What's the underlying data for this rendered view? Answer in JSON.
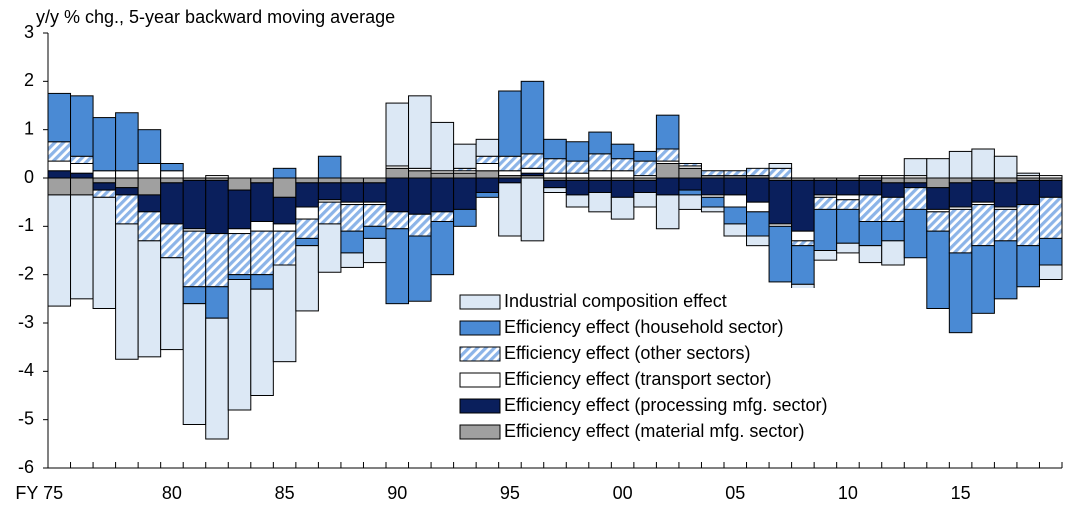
{
  "chart_data": {
    "type": "bar",
    "stacked": true,
    "title": "y/y % chg., 5-year backward moving average",
    "categories": [
      "FY 75",
      null,
      null,
      null,
      null,
      "80",
      null,
      null,
      null,
      null,
      "85",
      null,
      null,
      null,
      null,
      "90",
      null,
      null,
      null,
      null,
      "95",
      null,
      null,
      null,
      null,
      "00",
      null,
      null,
      null,
      null,
      "05",
      null,
      null,
      null,
      null,
      "10",
      null,
      null,
      null,
      null,
      "15",
      null,
      null,
      null,
      null
    ],
    "ylim": [
      -6,
      3
    ],
    "yticks": [
      3,
      2,
      1,
      0,
      -1,
      -2,
      -3,
      -4,
      -5,
      -6
    ],
    "series": [
      {
        "name": "Industrial composition effect",
        "color": "#dce8f5",
        "values": [
          -2.3,
          -2.15,
          -2.3,
          -2.8,
          -2.4,
          -1.9,
          -2.5,
          -2.5,
          -2.7,
          -2.2,
          -2.0,
          -1.35,
          -1.0,
          -0.3,
          -0.5,
          1.3,
          1.5,
          1.0,
          0.5,
          0.35,
          -1.1,
          -1.3,
          -0.1,
          -0.25,
          -0.4,
          -0.45,
          -0.3,
          -0.7,
          -0.3,
          -0.1,
          -0.25,
          -0.2,
          0.1,
          -0.35,
          -0.2,
          -0.2,
          -0.35,
          -0.5,
          0.35,
          0.4,
          0.55,
          0.6,
          0.45,
          0.05,
          -0.3
        ]
      },
      {
        "name": "Efficiency effect (household sector)",
        "color": "#4a8ad4",
        "values": [
          1.0,
          1.25,
          1.1,
          1.2,
          0.7,
          0.15,
          -0.35,
          -0.65,
          -0.1,
          -0.3,
          0.2,
          -0.15,
          0.45,
          -0.45,
          -0.25,
          -1.55,
          -1.35,
          -1.1,
          -0.35,
          -0.1,
          1.35,
          1.5,
          0.4,
          0.4,
          0.45,
          0.3,
          0.2,
          0.7,
          -0.1,
          -0.2,
          -0.35,
          -0.5,
          -1.15,
          -0.8,
          -0.85,
          -0.7,
          -0.5,
          -0.4,
          -1.0,
          -1.6,
          -1.65,
          -1.4,
          -1.2,
          -0.85,
          -0.55
        ]
      },
      {
        "name": "Efficiency effect (other sectors)",
        "color": "#8cb4e8",
        "hatch": true,
        "values": [
          0.4,
          0.15,
          -0.15,
          -0.6,
          -0.6,
          -0.7,
          -1.15,
          -1.1,
          -0.85,
          -0.9,
          -0.7,
          -0.4,
          -0.45,
          -0.55,
          -0.45,
          -0.35,
          -0.45,
          -0.2,
          0.05,
          0.15,
          0.3,
          0.3,
          0.3,
          0.25,
          0.35,
          0.25,
          0.3,
          0.25,
          0.05,
          0.1,
          0.1,
          0.15,
          0.2,
          -0.1,
          -0.25,
          -0.2,
          -0.55,
          -0.5,
          -0.45,
          -0.4,
          -0.9,
          -0.85,
          -0.65,
          -0.85,
          -0.85
        ]
      },
      {
        "name": "Efficiency effect (transport sector)",
        "color": "#ffffff",
        "values": [
          0.2,
          0.2,
          0.15,
          0.15,
          0.3,
          0.15,
          -0.05,
          0.05,
          -0.1,
          -0.2,
          -0.15,
          -0.25,
          -0.05,
          -0.05,
          -0.05,
          0.05,
          0.05,
          0.05,
          0.05,
          0.15,
          0.1,
          0.1,
          0.1,
          0.1,
          0.15,
          0.15,
          0.05,
          0.05,
          0.05,
          -0.05,
          -0.25,
          -0.2,
          -0.05,
          -0.2,
          -0.05,
          -0.1,
          0.05,
          0.05,
          0.05,
          -0.05,
          -0.05,
          -0.05,
          -0.05,
          0.05,
          0.05
        ]
      },
      {
        "name": "Efficiency effect (processing mfg. sector)",
        "color": "#0a1f5c",
        "values": [
          0.15,
          0.1,
          -0.15,
          -0.15,
          -0.35,
          -0.85,
          -1.0,
          -1.1,
          -0.8,
          -0.8,
          -0.55,
          -0.5,
          -0.35,
          -0.4,
          -0.4,
          -0.7,
          -0.75,
          -0.7,
          -0.65,
          -0.3,
          -0.1,
          0.05,
          -0.15,
          -0.3,
          -0.25,
          -0.35,
          -0.25,
          -0.35,
          -0.25,
          -0.35,
          -0.35,
          -0.5,
          -0.9,
          -1.05,
          -0.3,
          -0.3,
          -0.3,
          -0.3,
          -0.1,
          -0.45,
          -0.5,
          -0.45,
          -0.5,
          -0.5,
          -0.35
        ]
      },
      {
        "name": "Efficiency effect (material mfg. sector)",
        "color": "#a0a0a0",
        "values": [
          -0.35,
          -0.35,
          -0.1,
          -0.2,
          -0.35,
          -0.1,
          -0.05,
          -0.05,
          -0.25,
          -0.1,
          -0.4,
          -0.1,
          -0.1,
          -0.1,
          -0.1,
          0.2,
          0.15,
          0.1,
          0.1,
          0.15,
          0.05,
          0.05,
          -0.05,
          -0.05,
          -0.05,
          -0.05,
          -0.05,
          0.3,
          0.2,
          0.05,
          0.05,
          0.05,
          -0.05,
          -0.05,
          -0.05,
          -0.05,
          -0.05,
          -0.1,
          -0.1,
          -0.2,
          -0.1,
          -0.05,
          -0.1,
          -0.05,
          -0.05
        ]
      }
    ]
  }
}
